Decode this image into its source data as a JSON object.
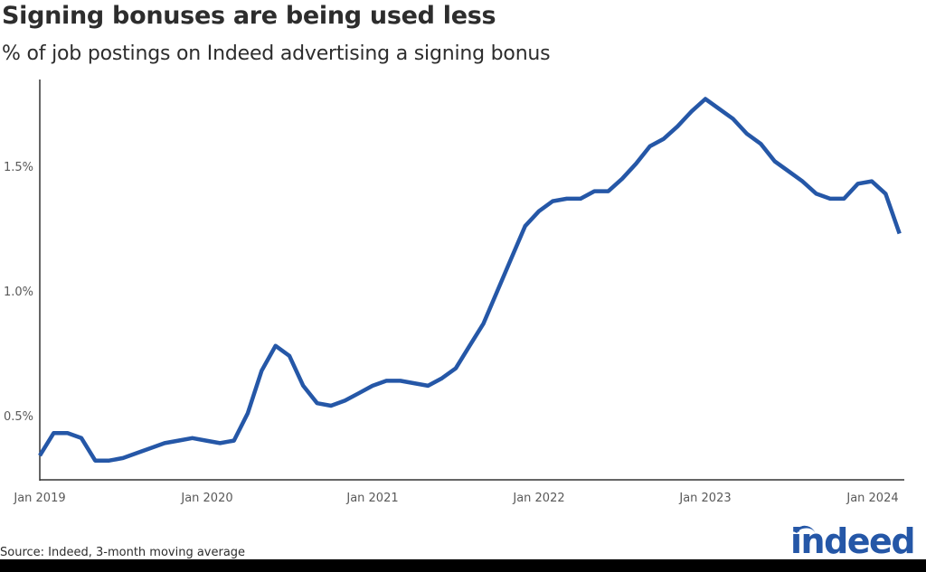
{
  "header": {
    "title": "Signing bonuses are being used less",
    "subtitle": "% of job postings on Indeed advertising a signing bonus"
  },
  "footer": {
    "source": "Source: Indeed, 3-month moving average",
    "logo_text": "indeed"
  },
  "colors": {
    "line": "#2557a7",
    "axis": "#333333",
    "tick_text": "#595959",
    "logo": "#2557a7"
  },
  "chart_data": {
    "type": "line",
    "title": "Signing bonuses are being used less",
    "subtitle": "% of job postings on Indeed advertising a signing bonus",
    "xlabel": "",
    "ylabel": "",
    "ylim": [
      0.3,
      1.8
    ],
    "y_ticks": [
      "0.5%",
      "1.0%",
      "1.5%"
    ],
    "y_tick_values": [
      0.5,
      1.0,
      1.5
    ],
    "x_ticks": [
      "Jan 2019",
      "Jan 2020",
      "Jan 2021",
      "Jan 2022",
      "Jan 2023",
      "Jan 2024"
    ],
    "grid": false,
    "legend": "none",
    "annotations": [
      "Source: Indeed, 3-month moving average"
    ],
    "series": [
      {
        "name": "% of job postings advertising a signing bonus",
        "x": [
          "2019-01",
          "2019-02",
          "2019-03",
          "2019-04",
          "2019-05",
          "2019-06",
          "2019-07",
          "2019-08",
          "2019-09",
          "2019-10",
          "2019-11",
          "2019-12",
          "2020-01",
          "2020-02",
          "2020-03",
          "2020-04",
          "2020-05",
          "2020-06",
          "2020-07",
          "2020-08",
          "2020-09",
          "2020-10",
          "2020-11",
          "2020-12",
          "2021-01",
          "2021-02",
          "2021-03",
          "2021-04",
          "2021-05",
          "2021-06",
          "2021-07",
          "2021-08",
          "2021-09",
          "2021-10",
          "2021-11",
          "2021-12",
          "2022-01",
          "2022-02",
          "2022-03",
          "2022-04",
          "2022-05",
          "2022-06",
          "2022-07",
          "2022-08",
          "2022-09",
          "2022-10",
          "2022-11",
          "2022-12",
          "2023-01",
          "2023-02",
          "2023-03",
          "2023-04",
          "2023-05",
          "2023-06",
          "2023-07",
          "2023-08",
          "2023-09",
          "2023-10",
          "2023-11",
          "2023-12",
          "2024-01",
          "2024-02",
          "2024-03"
        ],
        "values": [
          0.34,
          0.43,
          0.43,
          0.41,
          0.32,
          0.32,
          0.33,
          0.35,
          0.37,
          0.39,
          0.4,
          0.41,
          0.4,
          0.39,
          0.4,
          0.51,
          0.68,
          0.78,
          0.74,
          0.62,
          0.55,
          0.54,
          0.56,
          0.59,
          0.62,
          0.64,
          0.64,
          0.63,
          0.62,
          0.65,
          0.69,
          0.78,
          0.87,
          1.0,
          1.13,
          1.26,
          1.32,
          1.36,
          1.37,
          1.37,
          1.4,
          1.4,
          1.45,
          1.51,
          1.58,
          1.61,
          1.66,
          1.72,
          1.77,
          1.73,
          1.69,
          1.63,
          1.59,
          1.52,
          1.48,
          1.44,
          1.39,
          1.37,
          1.37,
          1.43,
          1.44,
          1.39,
          1.23
        ]
      }
    ]
  }
}
